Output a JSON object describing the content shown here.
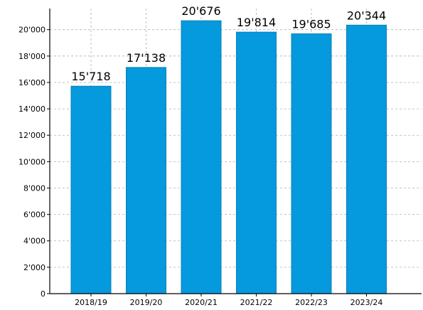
{
  "chart_data": {
    "type": "bar",
    "title": "",
    "xlabel": "",
    "ylabel": "",
    "categories": [
      "2018/19",
      "2019/20",
      "2020/21",
      "2021/22",
      "2022/23",
      "2023/24"
    ],
    "values": [
      15718,
      17138,
      20676,
      19814,
      19685,
      20344
    ],
    "value_labels": [
      "15'718",
      "17'138",
      "20'676",
      "19'814",
      "19'685",
      "20'344"
    ],
    "ylim": [
      0,
      21600
    ],
    "yticks": [
      0,
      2000,
      4000,
      6000,
      8000,
      10000,
      12000,
      14000,
      16000,
      18000,
      20000
    ],
    "ytick_labels": [
      "0",
      "2'000",
      "4'000",
      "6'000",
      "8'000",
      "10'000",
      "12'000",
      "14'000",
      "16'000",
      "18'000",
      "20'000"
    ],
    "grid": true,
    "colors": {
      "bar": "#0599dd",
      "bar_edge": "#0a7fb8"
    }
  }
}
